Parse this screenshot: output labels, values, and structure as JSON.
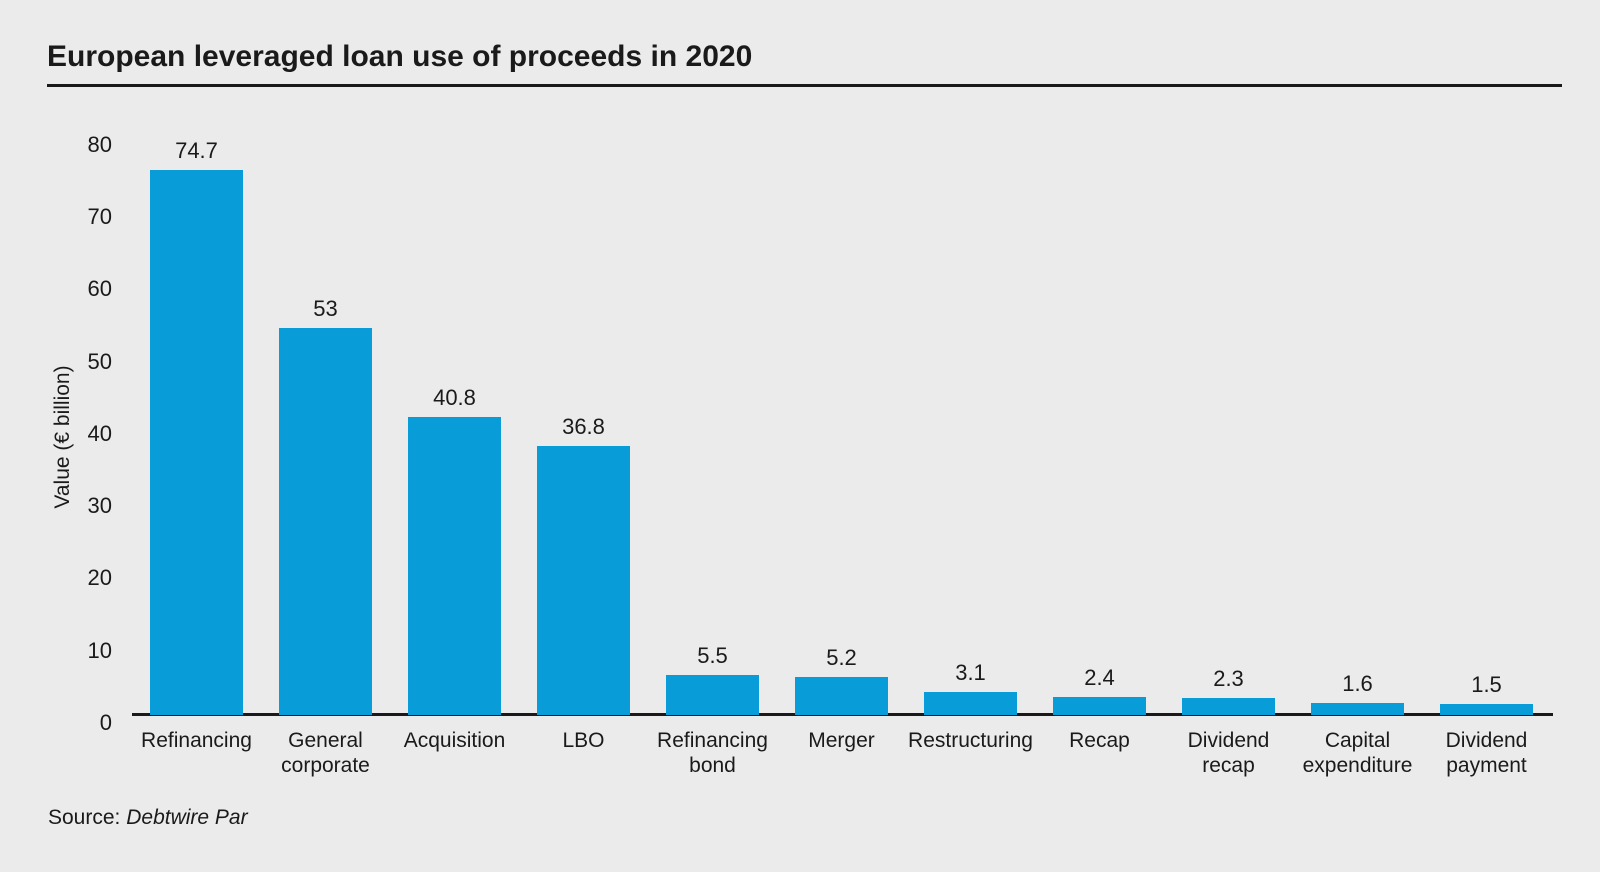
{
  "page": {
    "background_color": "#ebebeb",
    "title": "European leveraged loan use of proceeds in 2020",
    "source_prefix": "Source: ",
    "source_name": "Debtwire Par"
  },
  "chart_data": {
    "type": "bar",
    "title": "European leveraged loan use of proceeds in 2020",
    "categories": [
      "Refinancing",
      "General corporate",
      "Acquisition",
      "LBO",
      "Refinancing bond",
      "Merger",
      "Restructuring",
      "Recap",
      "Dividend recap",
      "Capital expenditure",
      "Dividend payment"
    ],
    "values": [
      74.7,
      53,
      40.8,
      36.8,
      5.5,
      5.2,
      3.1,
      2.4,
      2.3,
      1.6,
      1.5
    ],
    "value_labels": [
      "74.7",
      "53",
      "40.8",
      "36.8",
      "5.5",
      "5.2",
      "3.1",
      "2.4",
      "2.3",
      "1.6",
      "1.5"
    ],
    "xlabel": "",
    "ylabel": "Value (€ billion)",
    "ylim": [
      0,
      80
    ],
    "yticks": [
      0,
      10,
      20,
      30,
      40,
      50,
      60,
      70,
      80
    ],
    "grid": false,
    "legend": "none",
    "bar_color": "#089dd9",
    "axis_color": "#1a1a1a",
    "text_color": "#1a1a1a",
    "source": "Source: Debtwire Par"
  }
}
